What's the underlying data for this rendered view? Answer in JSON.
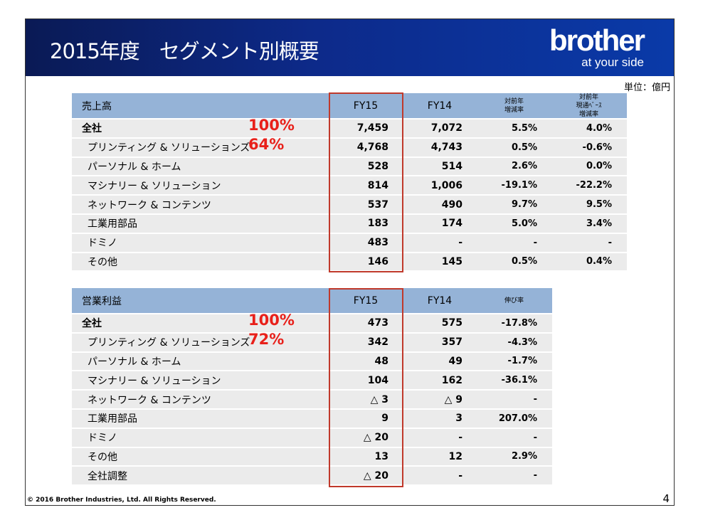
{
  "header": {
    "title": "2015年度　セグメント別概要",
    "logo_main": "brother",
    "logo_tagline": "at your side"
  },
  "unit": "単位：億円",
  "sales": {
    "header": [
      "売上高",
      "FY15",
      "FY14",
      "対前年\n増減率",
      "対前年\n現通ﾍﾞｰｽ\n増減率"
    ],
    "rows": [
      {
        "label": "全社",
        "pct": "100%",
        "fy15": "7,459",
        "fy14": "7,072",
        "yoy": "5.5%",
        "yoy_cc": "4.0%"
      },
      {
        "label": "プリンティング & ソリューションズ",
        "pct": "64%",
        "fy15": "4,768",
        "fy14": "4,743",
        "yoy": "0.5%",
        "yoy_cc": "-0.6%"
      },
      {
        "label": "パーソナル & ホーム",
        "fy15": "528",
        "fy14": "514",
        "yoy": "2.6%",
        "yoy_cc": "0.0%"
      },
      {
        "label": "マシナリー & ソリューション",
        "fy15": "814",
        "fy14": "1,006",
        "yoy": "-19.1%",
        "yoy_cc": "-22.2%"
      },
      {
        "label": "ネットワーク & コンテンツ",
        "fy15": "537",
        "fy14": "490",
        "yoy": "9.7%",
        "yoy_cc": "9.5%"
      },
      {
        "label": "工業用部品",
        "fy15": "183",
        "fy14": "174",
        "yoy": "5.0%",
        "yoy_cc": "3.4%"
      },
      {
        "label": "ドミノ",
        "fy15": "483",
        "fy14": "-",
        "yoy": "-",
        "yoy_cc": "-"
      },
      {
        "label": "その他",
        "fy15": "146",
        "fy14": "145",
        "yoy": "0.5%",
        "yoy_cc": "0.4%"
      }
    ]
  },
  "profit": {
    "header": [
      "営業利益",
      "FY15",
      "FY14",
      "伸び率"
    ],
    "rows": [
      {
        "label": "全社",
        "pct": "100%",
        "fy15": "473",
        "fy14": "575",
        "yoy": "-17.8%"
      },
      {
        "label": "プリンティング & ソリューションズ",
        "pct": "72%",
        "fy15": "342",
        "fy14": "357",
        "yoy": "-4.3%"
      },
      {
        "label": "パーソナル & ホーム",
        "fy15": "48",
        "fy14": "49",
        "yoy": "-1.7%"
      },
      {
        "label": "マシナリー & ソリューション",
        "fy15": "104",
        "fy14": "162",
        "yoy": "-36.1%"
      },
      {
        "label": "ネットワーク & コンテンツ",
        "fy15": "△ 3",
        "fy14": "△ 9",
        "yoy": "-"
      },
      {
        "label": "工業用部品",
        "fy15": "9",
        "fy14": "3",
        "yoy": "207.0%"
      },
      {
        "label": "ドミノ",
        "fy15": "△ 20",
        "fy14": "-",
        "yoy": "-"
      },
      {
        "label": "その他",
        "fy15": "13",
        "fy14": "12",
        "yoy": "2.9%"
      },
      {
        "label": "全社調整",
        "fy15": "△ 20",
        "fy14": "-",
        "yoy": "-"
      }
    ]
  },
  "footer": {
    "copyright": "© 2016 Brother Industries, Ltd. All Rights Reserved.",
    "page": "4"
  }
}
